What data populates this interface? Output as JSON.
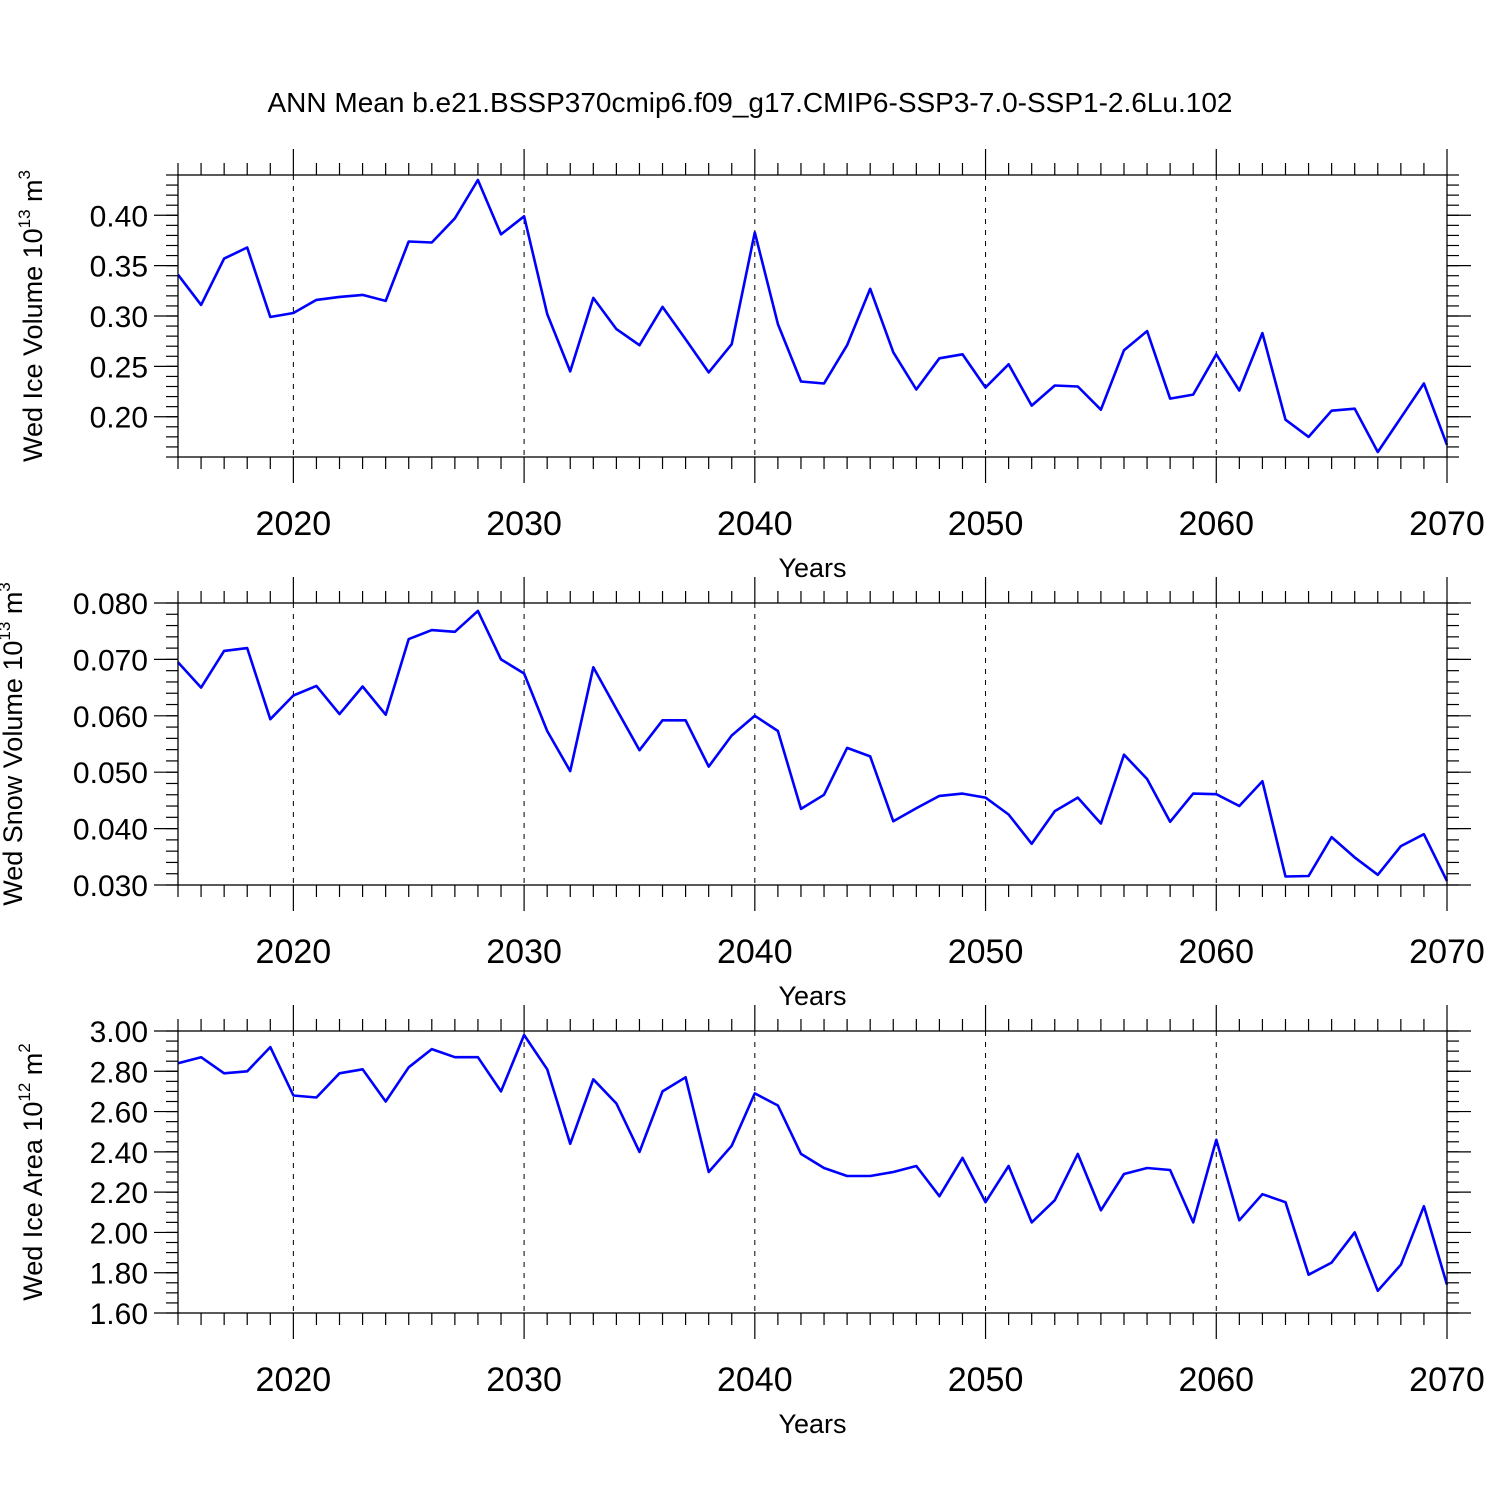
{
  "figure": {
    "title": "ANN Mean b.e21.BSSP370cmip6.f09_g17.CMIP6-SSP3-7.0-SSP1-2.6Lu.102"
  },
  "colors": {
    "line": "#0000ff",
    "axis": "#000000",
    "background": "#ffffff"
  },
  "chart_data": [
    {
      "type": "line",
      "title": "",
      "xlabel": "Years",
      "ylabel_main": "Wed Ice Volume 10",
      "ylabel_exp": "13",
      "ylabel_unit": " m",
      "ylabel_unit_exp": "3",
      "xlim": [
        2015,
        2070
      ],
      "ylim": [
        0.16,
        0.44
      ],
      "yticks": [
        0.2,
        0.25,
        0.3,
        0.35,
        0.4
      ],
      "ytick_labels": [
        "0.20",
        "0.25",
        "0.30",
        "0.35",
        "0.40"
      ],
      "yminor_step": 0.01,
      "xticks": [
        2020,
        2030,
        2040,
        2050,
        2060,
        2070
      ],
      "xtick_labels": [
        "2020",
        "2030",
        "2040",
        "2050",
        "2060",
        "2070"
      ],
      "grid": "dashed vertical at major x ticks",
      "x": [
        2015,
        2016,
        2017,
        2018,
        2019,
        2020,
        2021,
        2022,
        2023,
        2024,
        2025,
        2026,
        2027,
        2028,
        2029,
        2030,
        2031,
        2032,
        2033,
        2034,
        2035,
        2036,
        2037,
        2038,
        2039,
        2040,
        2041,
        2042,
        2043,
        2044,
        2045,
        2046,
        2047,
        2048,
        2049,
        2050,
        2051,
        2052,
        2053,
        2054,
        2055,
        2056,
        2057,
        2058,
        2059,
        2060,
        2061,
        2062,
        2063,
        2064,
        2065,
        2066,
        2067,
        2068,
        2069,
        2070
      ],
      "values": [
        0.341,
        0.311,
        0.357,
        0.368,
        0.299,
        0.303,
        0.316,
        0.319,
        0.321,
        0.315,
        0.374,
        0.373,
        0.397,
        0.435,
        0.381,
        0.399,
        0.302,
        0.245,
        0.318,
        0.287,
        0.271,
        0.309,
        0.277,
        0.244,
        0.272,
        0.383,
        0.292,
        0.235,
        0.233,
        0.271,
        0.327,
        0.264,
        0.227,
        0.258,
        0.262,
        0.229,
        0.252,
        0.211,
        0.231,
        0.23,
        0.207,
        0.266,
        0.285,
        0.218,
        0.222,
        0.262,
        0.226,
        0.283,
        0.197,
        0.18,
        0.206,
        0.208,
        0.165,
        0.199,
        0.233,
        0.172
      ]
    },
    {
      "type": "line",
      "title": "",
      "xlabel": "Years",
      "ylabel_main": "Wed Snow Volume 10",
      "ylabel_exp": "13",
      "ylabel_unit": " m",
      "ylabel_unit_exp": "3",
      "xlim": [
        2015,
        2070
      ],
      "ylim": [
        0.03,
        0.08
      ],
      "yticks": [
        0.03,
        0.04,
        0.05,
        0.06,
        0.07,
        0.08
      ],
      "ytick_labels": [
        "0.030",
        "0.040",
        "0.050",
        "0.060",
        "0.070",
        "0.080"
      ],
      "yminor_step": 0.002,
      "xticks": [
        2020,
        2030,
        2040,
        2050,
        2060,
        2070
      ],
      "xtick_labels": [
        "2020",
        "2030",
        "2040",
        "2050",
        "2060",
        "2070"
      ],
      "grid": "dashed vertical at major x ticks",
      "x": [
        2015,
        2016,
        2017,
        2018,
        2019,
        2020,
        2021,
        2022,
        2023,
        2024,
        2025,
        2026,
        2027,
        2028,
        2029,
        2030,
        2031,
        2032,
        2033,
        2034,
        2035,
        2036,
        2037,
        2038,
        2039,
        2040,
        2041,
        2042,
        2043,
        2044,
        2045,
        2046,
        2047,
        2048,
        2049,
        2050,
        2051,
        2052,
        2053,
        2054,
        2055,
        2056,
        2057,
        2058,
        2059,
        2060,
        2061,
        2062,
        2063,
        2064,
        2065,
        2066,
        2067,
        2068,
        2069,
        2070
      ],
      "values": [
        0.0695,
        0.065,
        0.0715,
        0.072,
        0.0594,
        0.0636,
        0.0653,
        0.0603,
        0.0652,
        0.0602,
        0.0736,
        0.0752,
        0.0749,
        0.0786,
        0.07,
        0.0675,
        0.0573,
        0.0502,
        0.0686,
        0.0612,
        0.0539,
        0.0592,
        0.0592,
        0.051,
        0.0565,
        0.06,
        0.0573,
        0.0435,
        0.046,
        0.0543,
        0.0528,
        0.0413,
        0.0436,
        0.0458,
        0.0462,
        0.0455,
        0.0425,
        0.0373,
        0.0431,
        0.0455,
        0.0409,
        0.0531,
        0.0488,
        0.0412,
        0.0462,
        0.0461,
        0.044,
        0.0484,
        0.0315,
        0.0316,
        0.0385,
        0.0349,
        0.0318,
        0.0369,
        0.039,
        0.0307
      ]
    },
    {
      "type": "line",
      "title": "",
      "xlabel": "Years",
      "ylabel_main": "Wed Ice Area 10",
      "ylabel_exp": "12",
      "ylabel_unit": " m",
      "ylabel_unit_exp": "2",
      "xlim": [
        2015,
        2070
      ],
      "ylim": [
        1.6,
        3.0
      ],
      "yticks": [
        1.6,
        1.8,
        2.0,
        2.2,
        2.4,
        2.6,
        2.8,
        3.0
      ],
      "ytick_labels": [
        "1.60",
        "1.80",
        "2.00",
        "2.20",
        "2.40",
        "2.60",
        "2.80",
        "3.00"
      ],
      "yminor_step": 0.05,
      "xticks": [
        2020,
        2030,
        2040,
        2050,
        2060,
        2070
      ],
      "xtick_labels": [
        "2020",
        "2030",
        "2040",
        "2050",
        "2060",
        "2070"
      ],
      "grid": "dashed vertical at major x ticks",
      "x": [
        2015,
        2016,
        2017,
        2018,
        2019,
        2020,
        2021,
        2022,
        2023,
        2024,
        2025,
        2026,
        2027,
        2028,
        2029,
        2030,
        2031,
        2032,
        2033,
        2034,
        2035,
        2036,
        2037,
        2038,
        2039,
        2040,
        2041,
        2042,
        2043,
        2044,
        2045,
        2046,
        2047,
        2048,
        2049,
        2050,
        2051,
        2052,
        2053,
        2054,
        2055,
        2056,
        2057,
        2058,
        2059,
        2060,
        2061,
        2062,
        2063,
        2064,
        2065,
        2066,
        2067,
        2068,
        2069,
        2070
      ],
      "values": [
        2.84,
        2.87,
        2.79,
        2.8,
        2.92,
        2.68,
        2.67,
        2.79,
        2.81,
        2.65,
        2.82,
        2.91,
        2.87,
        2.87,
        2.7,
        2.98,
        2.81,
        2.44,
        2.76,
        2.64,
        2.4,
        2.7,
        2.77,
        2.3,
        2.43,
        2.69,
        2.63,
        2.39,
        2.32,
        2.28,
        2.28,
        2.3,
        2.33,
        2.18,
        2.37,
        2.15,
        2.33,
        2.05,
        2.16,
        2.39,
        2.11,
        2.29,
        2.32,
        2.31,
        2.05,
        2.46,
        2.06,
        2.19,
        2.15,
        1.79,
        1.85,
        2.0,
        1.71,
        1.84,
        2.13,
        1.74
      ]
    }
  ]
}
